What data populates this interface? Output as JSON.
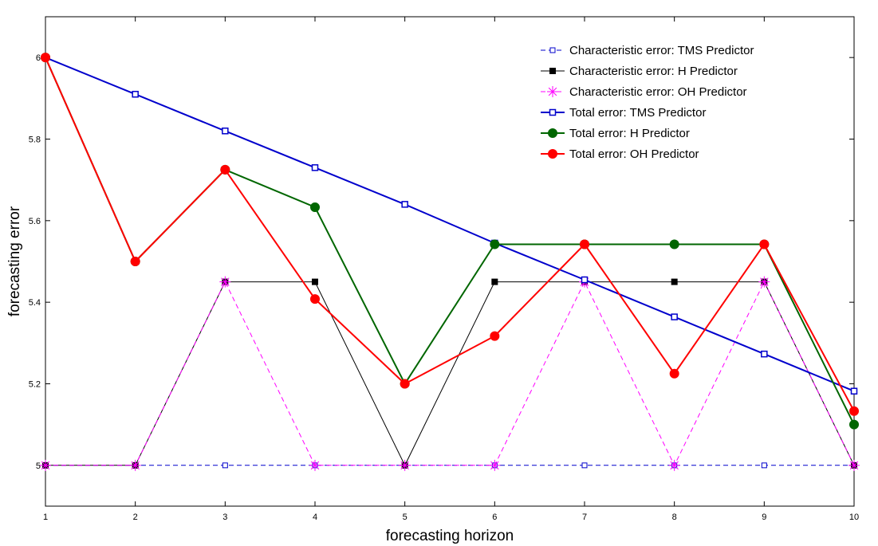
{
  "chart_data": {
    "type": "line",
    "title": "",
    "xlabel": "forecasting horizon",
    "ylabel": "forecasting error",
    "x": [
      1,
      2,
      3,
      4,
      5,
      6,
      7,
      8,
      9,
      10
    ],
    "xlim": [
      1,
      10
    ],
    "ylim": [
      4.9,
      6.1
    ],
    "yticks": [
      5,
      5.2,
      5.4,
      5.6,
      5.8,
      6
    ],
    "ytick_labels": [
      "5",
      "5.2",
      "5.4",
      "5.6",
      "5.8",
      "6"
    ],
    "xtick_labels": [
      "1",
      "2",
      "3",
      "4",
      "5",
      "6",
      "7",
      "8",
      "9",
      "10"
    ],
    "legend_position": "top-right",
    "series": [
      {
        "name": "Characteristic error: TMS Predictor",
        "values": [
          5,
          5,
          5,
          5,
          5,
          5,
          5,
          5,
          5,
          5
        ],
        "color": "#0000cc",
        "dash": "dashed",
        "marker": "square-open"
      },
      {
        "name": "Characteristic error: H Predictor",
        "values": [
          5,
          5,
          5.45,
          5.45,
          5,
          5.45,
          5.45,
          5.45,
          5.45,
          5
        ],
        "color": "#000000",
        "dash": "solid",
        "marker": "square-filled"
      },
      {
        "name": "Characteristic error: OH Predictor",
        "values": [
          5,
          5,
          5.45,
          5,
          5,
          5,
          5.45,
          5,
          5.45,
          5
        ],
        "color": "#ff00ff",
        "dash": "dashed",
        "marker": "star"
      },
      {
        "name": "Total error: TMS Predictor",
        "values": [
          6,
          5.91,
          5.82,
          5.73,
          5.64,
          5.545,
          5.455,
          5.364,
          5.273,
          5.182
        ],
        "color": "#0000cc",
        "dash": "solid",
        "marker": "square-open-bold"
      },
      {
        "name": "Total error: H Predictor",
        "values": [
          6,
          5.5,
          5.725,
          5.633,
          5.2,
          5.542,
          5.542,
          5.542,
          5.542,
          5.1
        ],
        "color": "#006600",
        "dash": "solid",
        "marker": "circle-filled"
      },
      {
        "name": "Total error: OH Predictor",
        "values": [
          6,
          5.5,
          5.725,
          5.408,
          5.2,
          5.317,
          5.542,
          5.225,
          5.542,
          5.133
        ],
        "color": "#ff0000",
        "dash": "solid",
        "marker": "circle-filled"
      }
    ]
  }
}
